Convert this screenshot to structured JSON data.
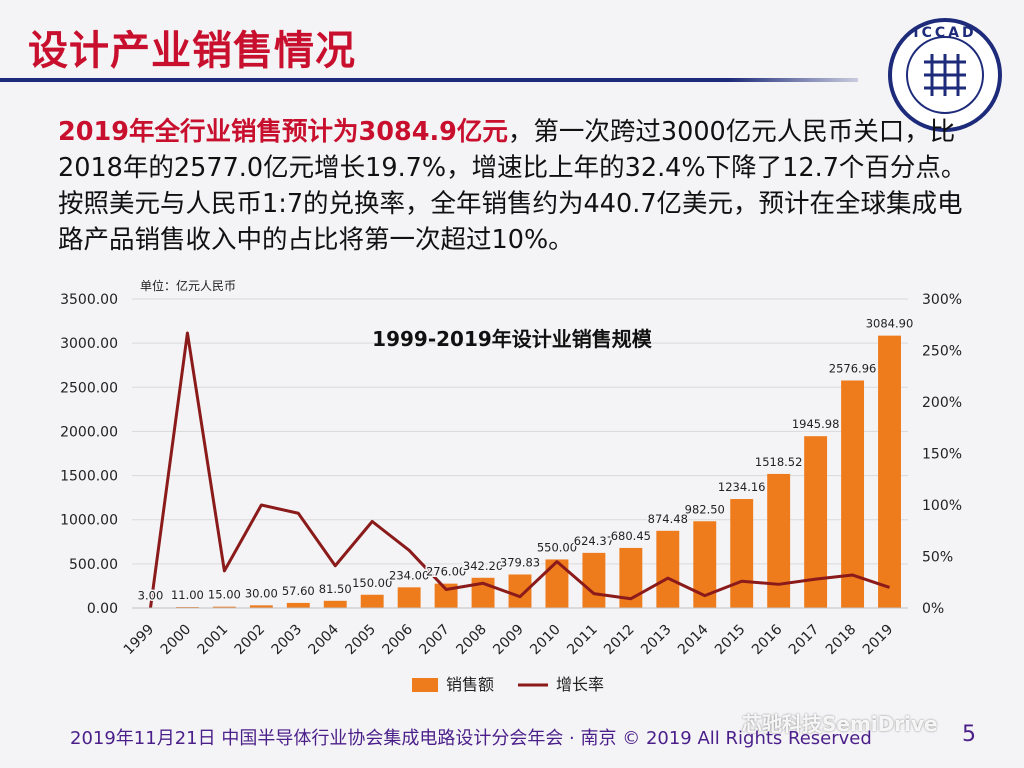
{
  "slide": {
    "title": "设计产业销售情况",
    "page_number": "5",
    "footer": "2019年11月21日 中国半导体行业协会集成电路设计分会年会 · 南京 © 2019 All Rights Reserved",
    "watermark": "芯驰科技SemiDrive",
    "logo_text": "ICCAD"
  },
  "summary": {
    "highlight": "2019年全行业销售预计为3084.9亿元",
    "rest": "，第一次跨过3000亿元人民币关口，比2018年的2577.0亿元增长19.7%，增速比上年的32.4%下降了12.7个百分点。按照美元与人民币1:7的兑换率，全年销售约为440.7亿美元，预计在全球集成电路产品销售收入中的占比将第一次超过10%。"
  },
  "colors": {
    "title_red": "#c8102e",
    "bar": "#ee7b1c",
    "line": "#8b1a1a",
    "rule": "#1d2b7a",
    "footer": "#4b1f8a"
  },
  "chart_data": {
    "type": "bar",
    "title": "1999-2019年设计业销售规模",
    "unit_label": "单位：亿元人民币",
    "categories": [
      "1999",
      "2000",
      "2001",
      "2002",
      "2003",
      "2004",
      "2005",
      "2006",
      "2007",
      "2008",
      "2009",
      "2010",
      "2011",
      "2012",
      "2013",
      "2014",
      "2015",
      "2016",
      "2017",
      "2018",
      "2019"
    ],
    "series": [
      {
        "name": "销售额",
        "type": "bar",
        "axis": "left",
        "values": [
          3.0,
          11.0,
          15.0,
          30.0,
          57.6,
          81.5,
          150.0,
          234.0,
          276.0,
          342.2,
          379.83,
          550.0,
          624.37,
          680.45,
          874.48,
          982.5,
          1234.16,
          1518.52,
          1945.98,
          2576.96,
          3084.9
        ],
        "labels": [
          "3.00",
          "11.00",
          "15.00",
          "30.00",
          "57.60",
          "81.50",
          "150.00",
          "234.00",
          "276.00",
          "342.20",
          "379.83",
          "550.00",
          "624.37",
          "680.45",
          "874.48",
          "982.50",
          "1234.16",
          "1518.52",
          "1945.98",
          "2576.96",
          "3084.90"
        ]
      },
      {
        "name": "增长率",
        "type": "line",
        "axis": "right",
        "values": [
          0,
          267,
          36,
          100,
          92,
          41,
          84,
          56,
          18,
          24,
          11,
          45,
          14,
          9,
          29,
          12,
          26,
          23,
          28,
          32,
          20
        ]
      }
    ],
    "ylim": [
      0,
      3500
    ],
    "yticks": [
      "0.00",
      "500.00",
      "1000.00",
      "1500.00",
      "2000.00",
      "2500.00",
      "3000.00",
      "3500.00"
    ],
    "y2lim": [
      0,
      300
    ],
    "y2ticks": [
      "0%",
      "50%",
      "100%",
      "150%",
      "200%",
      "250%",
      "300%"
    ],
    "grid": true,
    "legend_position": "bottom"
  }
}
